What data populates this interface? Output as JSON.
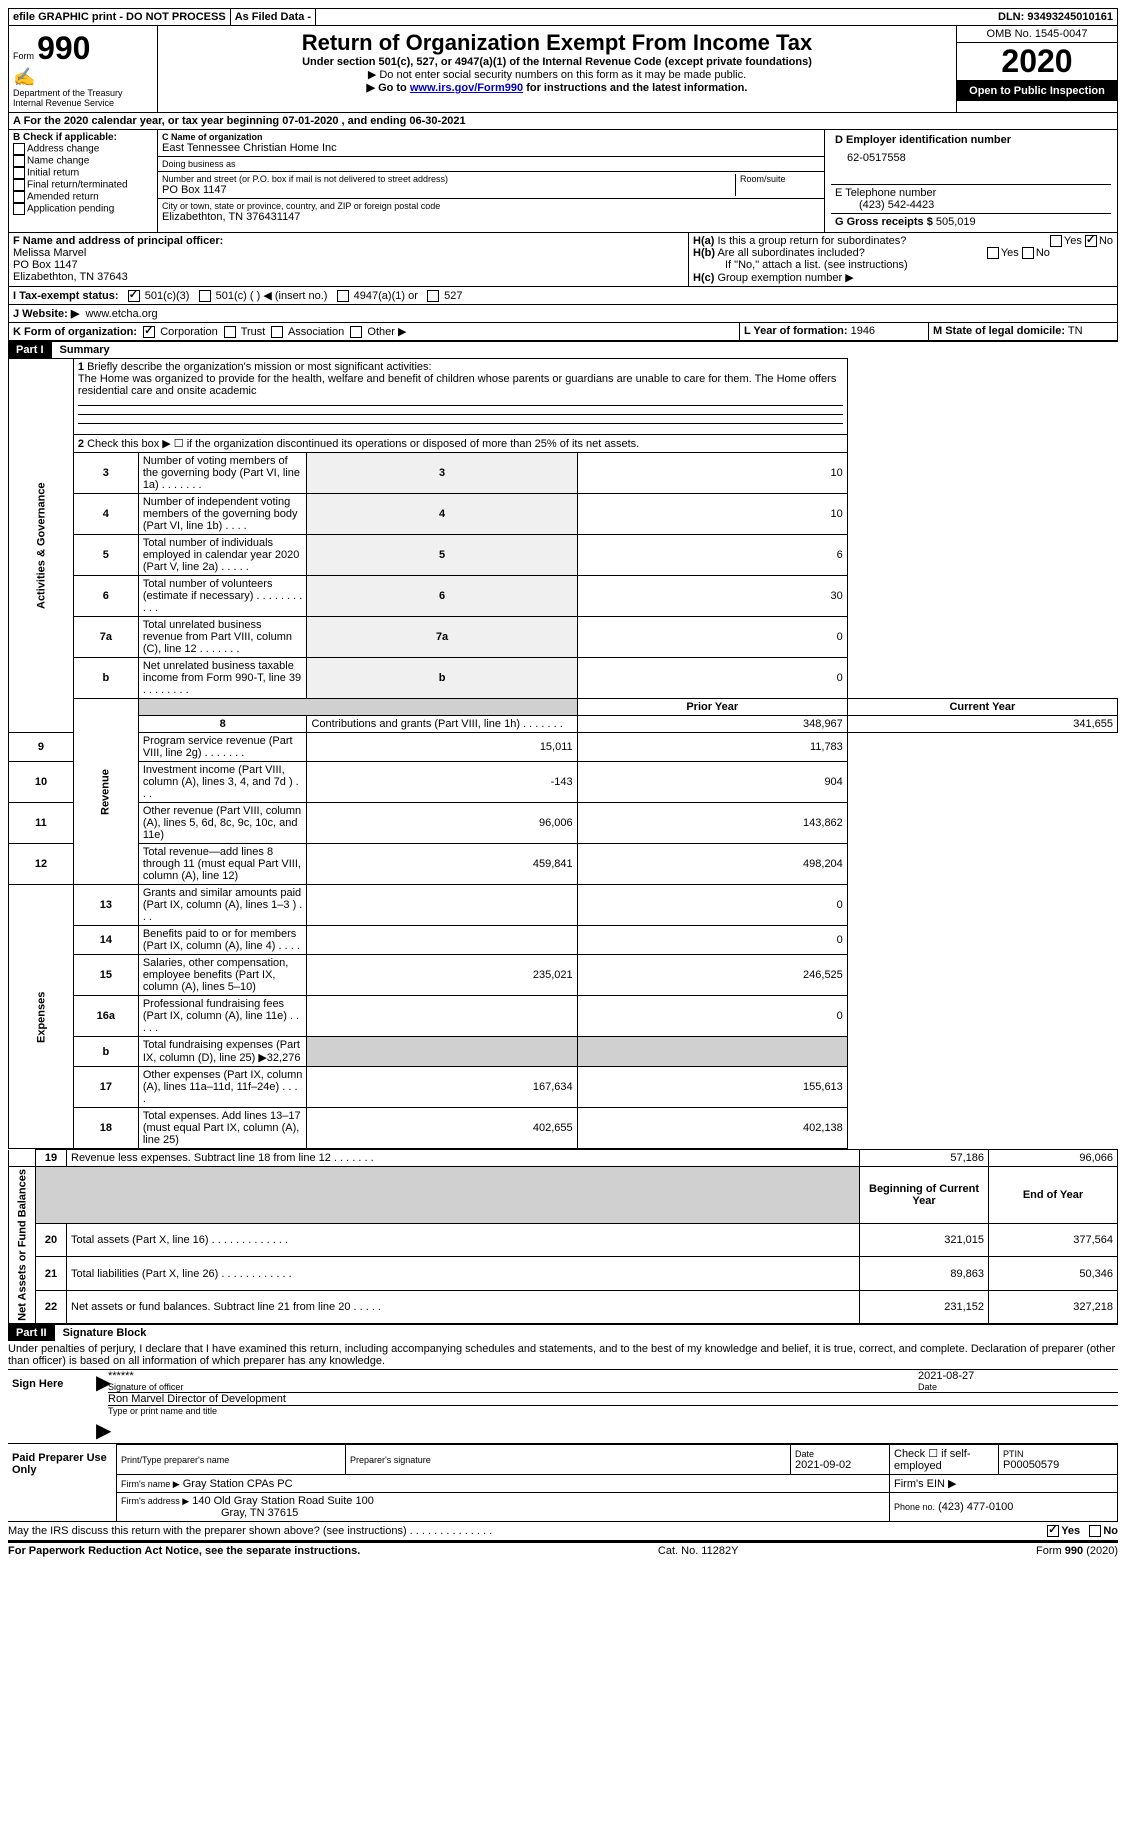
{
  "topbar": {
    "efile": "efile GRAPHIC print - DO NOT PROCESS",
    "asfiled": "As Filed Data -",
    "dln_label": "DLN:",
    "dln": "93493245010161"
  },
  "header": {
    "form_label": "Form",
    "form_number": "990",
    "dept": "Department of the Treasury",
    "irs": "Internal Revenue Service",
    "title": "Return of Organization Exempt From Income Tax",
    "subtitle": "Under section 501(c), 527, or 4947(a)(1) of the Internal Revenue Code (except private foundations)",
    "note1": "▶ Do not enter social security numbers on this form as it may be made public.",
    "note2_pre": "▶ Go to ",
    "note2_link": "www.irs.gov/Form990",
    "note2_post": " for instructions and the latest information.",
    "omb": "OMB No. 1545-0047",
    "year": "2020",
    "open": "Open to Public Inspection"
  },
  "section_a": {
    "text_pre": "A   For the 2020 calendar year, or tax year beginning ",
    "begin": "07-01-2020",
    "mid": "  , and ending ",
    "end": "06-30-2021"
  },
  "block_b": {
    "header": "B Check if applicable:",
    "items": [
      "Address change",
      "Name change",
      "Initial return",
      "Final return/terminated",
      "Amended return",
      "Application pending"
    ]
  },
  "block_c": {
    "name_label": "C Name of organization",
    "name": "East Tennessee Christian Home Inc",
    "dba_label": "Doing business as",
    "dba": "",
    "street_label": "Number and street (or P.O. box if mail is not delivered to street address)",
    "street": "PO Box 1147",
    "room_label": "Room/suite",
    "city_label": "City or town, state or province, country, and ZIP or foreign postal code",
    "city": "Elizabethton, TN  376431147"
  },
  "block_d": {
    "ein_label": "D Employer identification number",
    "ein": "62-0517558",
    "phone_label": "E Telephone number",
    "phone": "(423) 542-4423",
    "gross_label": "G Gross receipts $",
    "gross": "505,019"
  },
  "block_f": {
    "label": "F  Name and address of principal officer:",
    "name": "Melissa Marvel",
    "street": "PO Box 1147",
    "city": "Elizabethton, TN  37643"
  },
  "block_h": {
    "ha_label": "H(a)",
    "ha_text": "Is this a group return for subordinates?",
    "hb_label": "H(b)",
    "hb_text": "Are all subordinates included?",
    "hb_note": "If \"No,\" attach a list. (see instructions)",
    "hc_label": "H(c)",
    "hc_text": "Group exemption number ▶",
    "yes": "Yes",
    "no": "No"
  },
  "block_i": {
    "label": "I   Tax-exempt status:",
    "o1": "501(c)(3)",
    "o2": "501(c) (  ) ◀ (insert no.)",
    "o3": "4947(a)(1) or",
    "o4": "527"
  },
  "block_j": {
    "label": "J   Website: ▶",
    "value": "www.etcha.org"
  },
  "block_k": {
    "label": "K Form of organization:",
    "o1": "Corporation",
    "o2": "Trust",
    "o3": "Association",
    "o4": "Other ▶"
  },
  "block_l": {
    "label": "L Year of formation:",
    "value": "1946"
  },
  "block_m": {
    "label": "M State of legal domicile:",
    "value": "TN"
  },
  "part1": {
    "header": "Part I",
    "title": "Summary",
    "q1_label": "1",
    "q1": "Briefly describe the organization's mission or most significant activities:",
    "q1_text": "The Home was organized to provide for the health, welfare and benefit of children whose parents or guardians are unable to care for them. The Home offers residential care and onsite academic",
    "q2_label": "2",
    "q2": "Check this box ▶ ☐ if the organization discontinued its operations or disposed of more than 25% of its net assets.",
    "sections": {
      "gov": "Activities & Governance",
      "rev": "Revenue",
      "exp": "Expenses",
      "net": "Net Assets or Fund Balances"
    },
    "col_prior": "Prior Year",
    "col_current": "Current Year",
    "col_begin": "Beginning of Current Year",
    "col_end": "End of Year",
    "lines_gov": [
      {
        "n": "3",
        "t": "Number of voting members of the governing body (Part VI, line 1a)  .  .  .  .  .  .  .",
        "v": "10"
      },
      {
        "n": "4",
        "t": "Number of independent voting members of the governing body (Part VI, line 1b)  .  .  .  .",
        "v": "10"
      },
      {
        "n": "5",
        "t": "Total number of individuals employed in calendar year 2020 (Part V, line 2a)  .  .  .  .  .",
        "v": "6"
      },
      {
        "n": "6",
        "t": "Total number of volunteers (estimate if necessary)  .  .  .  .  .  .  .  .  .  .  .",
        "v": "30"
      },
      {
        "n": "7a",
        "t": "Total unrelated business revenue from Part VIII, column (C), line 12  .  .  .  .  .  .  .",
        "v": "0"
      },
      {
        "n": "b",
        "t": "Net unrelated business taxable income from Form 990-T, line 39  .  .  .  .  .  .  .  .",
        "v": "0"
      }
    ],
    "lines_rev": [
      {
        "n": "8",
        "t": "Contributions and grants (Part VIII, line 1h)  .  .  .  .  .  .  .",
        "p": "348,967",
        "c": "341,655"
      },
      {
        "n": "9",
        "t": "Program service revenue (Part VIII, line 2g)  .  .  .  .  .  .  .",
        "p": "15,011",
        "c": "11,783"
      },
      {
        "n": "10",
        "t": "Investment income (Part VIII, column (A), lines 3, 4, and 7d )  .  .  .",
        "p": "-143",
        "c": "904"
      },
      {
        "n": "11",
        "t": "Other revenue (Part VIII, column (A), lines 5, 6d, 8c, 9c, 10c, and 11e)",
        "p": "96,006",
        "c": "143,862"
      },
      {
        "n": "12",
        "t": "Total revenue—add lines 8 through 11 (must equal Part VIII, column (A), line 12)",
        "p": "459,841",
        "c": "498,204"
      }
    ],
    "lines_exp": [
      {
        "n": "13",
        "t": "Grants and similar amounts paid (Part IX, column (A), lines 1–3 )  .  .  .",
        "p": "",
        "c": "0"
      },
      {
        "n": "14",
        "t": "Benefits paid to or for members (Part IX, column (A), line 4)  .  .  .  .",
        "p": "",
        "c": "0"
      },
      {
        "n": "15",
        "t": "Salaries, other compensation, employee benefits (Part IX, column (A), lines 5–10)",
        "p": "235,021",
        "c": "246,525"
      },
      {
        "n": "16a",
        "t": "Professional fundraising fees (Part IX, column (A), line 11e)  .  .  .  .  .",
        "p": "",
        "c": "0"
      },
      {
        "n": "b",
        "t": "Total fundraising expenses (Part IX, column (D), line 25) ▶32,276",
        "p": "shade",
        "c": "shade"
      },
      {
        "n": "17",
        "t": "Other expenses (Part IX, column (A), lines 11a–11d, 11f–24e)  .  .  .  .",
        "p": "167,634",
        "c": "155,613"
      },
      {
        "n": "18",
        "t": "Total expenses. Add lines 13–17 (must equal Part IX, column (A), line 25)",
        "p": "402,655",
        "c": "402,138"
      },
      {
        "n": "19",
        "t": "Revenue less expenses. Subtract line 18 from line 12  .  .  .  .  .  .  .",
        "p": "57,186",
        "c": "96,066"
      }
    ],
    "lines_net": [
      {
        "n": "20",
        "t": "Total assets (Part X, line 16)  .  .  .  .  .  .  .  .  .  .  .  .  .",
        "p": "321,015",
        "c": "377,564"
      },
      {
        "n": "21",
        "t": "Total liabilities (Part X, line 26)  .  .  .  .  .  .  .  .  .  .  .  .",
        "p": "89,863",
        "c": "50,346"
      },
      {
        "n": "22",
        "t": "Net assets or fund balances. Subtract line 21 from line 20  .  .  .  .  .",
        "p": "231,152",
        "c": "327,218"
      }
    ]
  },
  "part2": {
    "header": "Part II",
    "title": "Signature Block",
    "penalty": "Under penalties of perjury, I declare that I have examined this return, including accompanying schedules and statements, and to the best of my knowledge and belief, it is true, correct, and complete. Declaration of preparer (other than officer) is based on all information of which preparer has any knowledge.",
    "sign_here": "Sign Here",
    "sig_stars": "******",
    "sig_label": "Signature of officer",
    "sig_date": "2021-08-27",
    "date_label": "Date",
    "officer_name": "Ron Marvel Director of Development",
    "officer_label": "Type or print name and title",
    "paid": "Paid Preparer Use Only",
    "prep_name_label": "Print/Type preparer's name",
    "prep_sig_label": "Preparer's signature",
    "prep_date_label": "Date",
    "prep_date": "2021-09-02",
    "check_label": "Check ☐ if self-employed",
    "ptin_label": "PTIN",
    "ptin": "P00050579",
    "firm_name_label": "Firm's name    ▶",
    "firm_name": "Gray Station CPAs PC",
    "firm_ein_label": "Firm's EIN ▶",
    "firm_addr_label": "Firm's address ▶",
    "firm_addr1": "140 Old Gray Station Road Suite 100",
    "firm_addr2": "Gray, TN  37615",
    "firm_phone_label": "Phone no.",
    "firm_phone": "(423) 477-0100",
    "discuss": "May the IRS discuss this return with the preparer shown above? (see instructions)  .  .  .  .  .  .  .  .  .  .  .  .  .  .",
    "yes": "Yes",
    "no": "No"
  },
  "footer": {
    "left": "For Paperwork Reduction Act Notice, see the separate instructions.",
    "mid": "Cat. No. 11282Y",
    "right_pre": "Form ",
    "right_form": "990",
    "right_post": " (2020)"
  }
}
